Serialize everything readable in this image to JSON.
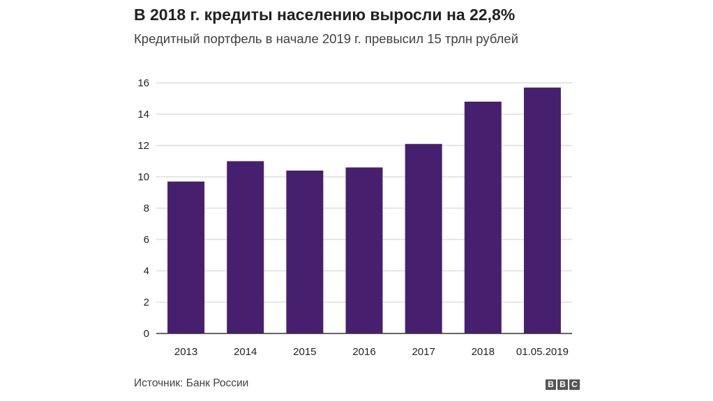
{
  "chart_data": {
    "type": "bar",
    "title": "В 2018 г. кредиты населению выросли на 22,8%",
    "subtitle": "Кредитный портфель в начале 2019 г. превысил 15 трлн рублей",
    "categories": [
      "2013",
      "2014",
      "2015",
      "2016",
      "2017",
      "2018",
      "01.05.2019"
    ],
    "values": [
      9.7,
      11.0,
      10.4,
      10.6,
      12.1,
      14.8,
      15.7
    ],
    "ylim": [
      0,
      16
    ],
    "yticks": [
      0,
      2,
      4,
      6,
      8,
      10,
      12,
      14,
      16
    ],
    "xlabel": "",
    "ylabel": "",
    "grid": true,
    "bar_color": "#46206f",
    "source": "Источник: Банк России"
  },
  "logo": [
    "B",
    "B",
    "C"
  ]
}
